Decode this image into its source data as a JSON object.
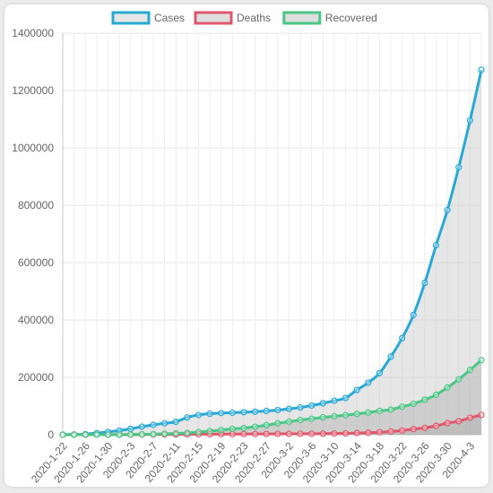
{
  "chart_data": {
    "type": "line",
    "title": "",
    "xlabel": "",
    "ylabel": "",
    "ylim": [
      0,
      1400000
    ],
    "y_ticks": [
      0,
      200000,
      400000,
      600000,
      800000,
      1000000,
      1200000,
      1400000
    ],
    "y_tick_labels": [
      "0",
      "200000",
      "400000",
      "600000",
      "800000",
      "1000000",
      "1200000",
      "1400000"
    ],
    "grid": true,
    "legend_position": "top",
    "x": [
      "2020-1-22",
      "2020-1-24",
      "2020-1-26",
      "2020-1-28",
      "2020-1-30",
      "2020-2-1",
      "2020-2-3",
      "2020-2-5",
      "2020-2-7",
      "2020-2-9",
      "2020-2-11",
      "2020-2-13",
      "2020-2-15",
      "2020-2-17",
      "2020-2-19",
      "2020-2-21",
      "2020-2-23",
      "2020-2-25",
      "2020-2-27",
      "2020-2-29",
      "2020-3-2",
      "2020-3-4",
      "2020-3-6",
      "2020-3-8",
      "2020-3-10",
      "2020-3-12",
      "2020-3-14",
      "2020-3-16",
      "2020-3-18",
      "2020-3-20",
      "2020-3-22",
      "2020-3-24",
      "2020-3-26",
      "2020-3-28",
      "2020-3-30",
      "2020-4-1",
      "2020-4-3",
      "2020-4-5"
    ],
    "x_tick_labels": [
      "2020-1-22",
      "2020-1-26",
      "2020-1-30",
      "2020-2-3",
      "2020-2-7",
      "2020-2-11",
      "2020-2-15",
      "2020-2-19",
      "2020-2-23",
      "2020-2-27",
      "2020-3-2",
      "2020-3-6",
      "2020-3-10",
      "2020-3-14",
      "2020-3-18",
      "2020-3-22",
      "2020-3-26",
      "2020-3-30",
      "2020-4-3"
    ],
    "series": [
      {
        "name": "Cases",
        "color": "#28a8d4",
        "fill": "rgba(200,200,200,0.45)",
        "values": [
          555,
          900,
          2100,
          5500,
          9800,
          14500,
          20600,
          28300,
          34400,
          40100,
          45200,
          60400,
          69000,
          73300,
          75600,
          76800,
          78600,
          80400,
          82800,
          86000,
          90300,
          95100,
          101800,
          109800,
          118600,
          128300,
          156100,
          181500,
          214900,
          272200,
          337000,
          417900,
          529600,
          660700,
          783400,
          932600,
          1095900,
          1272100
        ]
      },
      {
        "name": "Deaths",
        "color": "#e0566a",
        "fill": "rgba(160,160,160,0.35)",
        "values": [
          17,
          26,
          56,
          131,
          213,
          259,
          426,
          564,
          724,
          908,
          1113,
          1369,
          1666,
          1870,
          2122,
          2251,
          2469,
          2710,
          2814,
          2943,
          3085,
          3254,
          3460,
          3800,
          4262,
          4720,
          5819,
          7126,
          8733,
          11299,
          14634,
          19607,
          24073,
          30848,
          40598,
          47180,
          59140,
          68988
        ]
      },
      {
        "name": "Recovered",
        "color": "#4bc686",
        "fill": "rgba(160,160,160,0.35)",
        "values": [
          28,
          36,
          52,
          107,
          143,
          282,
          626,
          1124,
          2011,
          3244,
          4683,
          6213,
          9395,
          12583,
          16121,
          20659,
          23394,
          27905,
          33277,
          39782,
          45602,
          51170,
          55865,
          60694,
          64404,
          68324,
          72624,
          77257,
          83207,
          87403,
          97882,
          108000,
          122150,
          139415,
          164566,
          193177,
          225796,
          260012
        ]
      }
    ]
  }
}
